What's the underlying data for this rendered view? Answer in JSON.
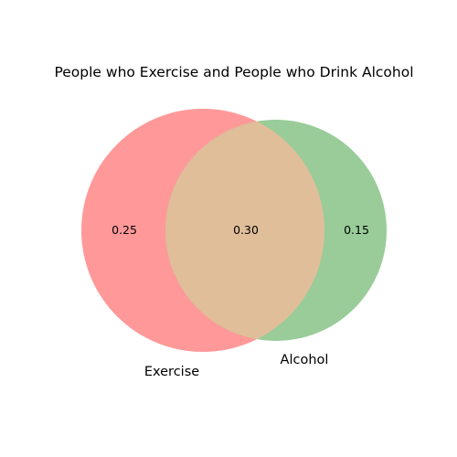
{
  "chart_data": {
    "type": "venn",
    "title": "People who Exercise and People who Drink Alcohol",
    "sets": [
      {
        "name": "Exercise",
        "color": "#ff9999"
      },
      {
        "name": "Alcohol",
        "color": "#99cc99"
      }
    ],
    "regions": {
      "exercise_only": "0.25",
      "intersection": "0.30",
      "alcohol_only": "0.15"
    },
    "intersection_color": "#e0be99"
  }
}
